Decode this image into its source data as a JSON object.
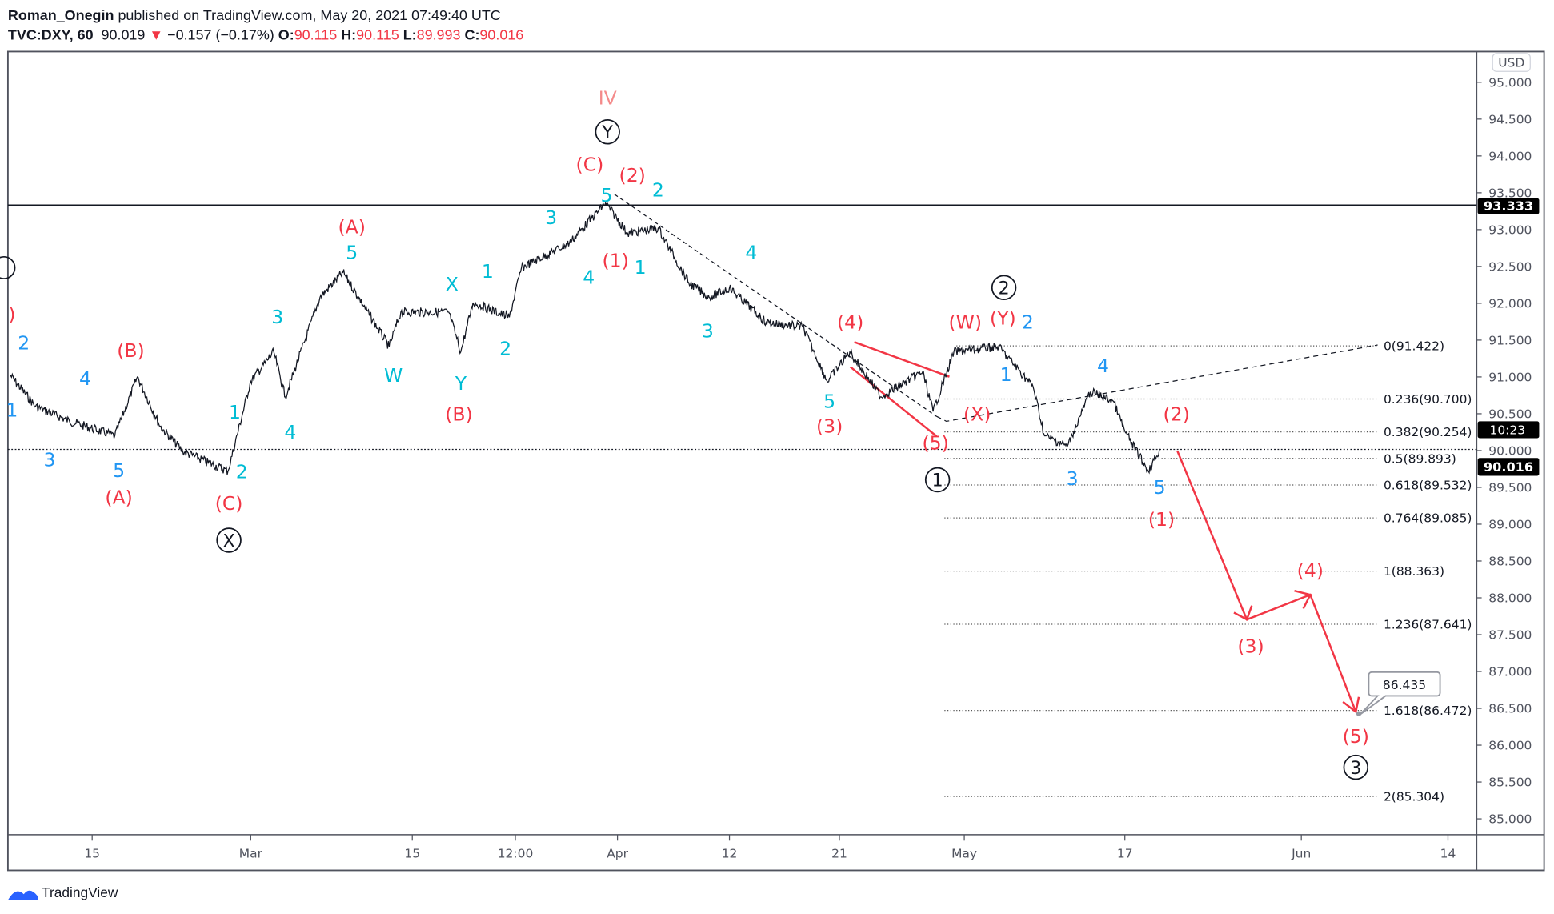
{
  "header": {
    "author": "Roman_Onegin",
    "published": "published on TradingView.com, May 20, 2021 07:49:40 UTC",
    "symbol": "TVC:DXY, 60",
    "last": "90.019",
    "change": "−0.157 (−0.17%)",
    "o_label": "O:",
    "o": "90.115",
    "h_label": "H:",
    "h": "90.115",
    "l_label": "L:",
    "l": "89.993",
    "c_label": "C:",
    "c": "90.016",
    "down_icon": "triangle-down-icon"
  },
  "colors": {
    "red": "#f23645",
    "cyan": "#00bcd4",
    "blue": "#2196f3",
    "pink": "#f48a8a",
    "price": "#131722"
  },
  "chart_data": {
    "type": "line",
    "title": "",
    "currency_label": "USD",
    "ylim": [
      84.8,
      95.4
    ],
    "y_ticks": [
      "95.000",
      "94.500",
      "94.000",
      "93.500",
      "93.000",
      "92.500",
      "92.000",
      "91.500",
      "91.000",
      "90.500",
      "90.000",
      "89.500",
      "89.000",
      "88.500",
      "88.000",
      "87.500",
      "87.000",
      "86.500",
      "86.000",
      "85.500",
      "85.000"
    ],
    "x_ticks": [
      "15",
      "Mar",
      "15",
      "12:00",
      "Apr",
      "12",
      "21",
      "May",
      "17",
      "Jun",
      "14"
    ],
    "last_price": "90.016",
    "countdown": "10:23",
    "horizontal_line": "93.333",
    "series": [
      {
        "points": [
          [
            "2021-02-08",
            91.03
          ],
          [
            "2021-02-10",
            90.6
          ],
          [
            "2021-02-13",
            90.4
          ],
          [
            "2021-02-17",
            90.2
          ],
          [
            "2021-02-19",
            91.0
          ],
          [
            "2021-02-21",
            90.33
          ],
          [
            "2021-02-23",
            89.99
          ],
          [
            "2021-02-27",
            89.72
          ],
          [
            "2021-03-01",
            90.94
          ],
          [
            "2021-03-03",
            91.34
          ],
          [
            "2021-03-04",
            90.73
          ],
          [
            "2021-03-07",
            92.08
          ],
          [
            "2021-03-09",
            92.42
          ],
          [
            "2021-03-13",
            91.41
          ],
          [
            "2021-03-14",
            91.88
          ],
          [
            "2021-03-18",
            91.88
          ],
          [
            "2021-03-19",
            91.34
          ],
          [
            "2021-03-20",
            92.01
          ],
          [
            "2021-03-23",
            91.81
          ],
          [
            "2021-03-24",
            92.48
          ],
          [
            "2021-03-28",
            92.82
          ],
          [
            "2021-03-31",
            93.36
          ],
          [
            "2021-04-02",
            92.95
          ],
          [
            "2021-04-05",
            93.02
          ],
          [
            "2021-04-08",
            92.28
          ],
          [
            "2021-04-10",
            92.08
          ],
          [
            "2021-04-12",
            92.21
          ],
          [
            "2021-04-15",
            91.74
          ],
          [
            "2021-04-18",
            91.68
          ],
          [
            "2021-04-20",
            90.94
          ],
          [
            "2021-04-22",
            91.34
          ],
          [
            "2021-04-25",
            90.73
          ],
          [
            "2021-04-29",
            91.07
          ],
          [
            "2021-04-30",
            90.53
          ],
          [
            "2021-05-02",
            91.34
          ],
          [
            "2021-05-06",
            91.41
          ],
          [
            "2021-05-09",
            90.87
          ],
          [
            "2021-05-10",
            90.2
          ],
          [
            "2021-05-12",
            90.06
          ],
          [
            "2021-05-14",
            90.8
          ],
          [
            "2021-05-16",
            90.67
          ],
          [
            "2021-05-17",
            90.26
          ],
          [
            "2021-05-19",
            89.72
          ],
          [
            "2021-05-20",
            90.02
          ]
        ]
      }
    ],
    "fib_levels": [
      {
        "label": "0(91.422)",
        "price": 91.422
      },
      {
        "label": "0.236(90.700)",
        "price": 90.7
      },
      {
        "label": "0.382(90.254)",
        "price": 90.254
      },
      {
        "label": "0.5(89.893)",
        "price": 89.893
      },
      {
        "label": "0.618(89.532)",
        "price": 89.532
      },
      {
        "label": "0.764(89.085)",
        "price": 89.085
      },
      {
        "label": "1(88.363)",
        "price": 88.363
      },
      {
        "label": "1.236(87.641)",
        "price": 87.641
      },
      {
        "label": "1.618(86.472)",
        "price": 86.472
      },
      {
        "label": "2(85.304)",
        "price": 85.304
      }
    ],
    "projection_callout": "86.435",
    "wave_labels": [
      {
        "text": ")",
        "color": "red"
      },
      {
        "text": "2",
        "color": "blue"
      },
      {
        "text": "1",
        "color": "blue"
      },
      {
        "text": "3",
        "color": "blue"
      },
      {
        "text": "4",
        "color": "blue"
      },
      {
        "text": "5",
        "color": "blue"
      },
      {
        "text": "(A)",
        "color": "red"
      },
      {
        "text": "(B)",
        "color": "red"
      },
      {
        "text": "1",
        "color": "cyan"
      },
      {
        "text": "2",
        "color": "cyan"
      },
      {
        "text": "(C)",
        "color": "red"
      },
      {
        "text": "3",
        "color": "cyan"
      },
      {
        "text": "4",
        "color": "cyan"
      },
      {
        "text": "(A)",
        "color": "red"
      },
      {
        "text": "5",
        "color": "cyan"
      },
      {
        "text": "W",
        "color": "cyan"
      },
      {
        "text": "X",
        "color": "cyan"
      },
      {
        "text": "1",
        "color": "cyan"
      },
      {
        "text": "Y",
        "color": "cyan"
      },
      {
        "text": "(B)",
        "color": "red"
      },
      {
        "text": "2",
        "color": "cyan"
      },
      {
        "text": "3",
        "color": "cyan"
      },
      {
        "text": "4",
        "color": "cyan"
      },
      {
        "text": "(1)",
        "color": "red"
      },
      {
        "text": "1",
        "color": "cyan"
      },
      {
        "text": "5",
        "color": "cyan"
      },
      {
        "text": "(C)",
        "color": "red"
      },
      {
        "text": "(2)",
        "color": "red"
      },
      {
        "text": "IV",
        "color": "pink"
      },
      {
        "text": "2",
        "color": "cyan"
      },
      {
        "text": "4",
        "color": "cyan"
      },
      {
        "text": "3",
        "color": "cyan"
      },
      {
        "text": "5",
        "color": "cyan"
      },
      {
        "text": "(3)",
        "color": "red"
      },
      {
        "text": "(4)",
        "color": "red"
      },
      {
        "text": "(5)",
        "color": "red"
      },
      {
        "text": "(X)",
        "color": "red"
      },
      {
        "text": "(W)",
        "color": "red"
      },
      {
        "text": "(Y)",
        "color": "red"
      },
      {
        "text": "2",
        "color": "blue"
      },
      {
        "text": "1",
        "color": "blue"
      },
      {
        "text": "4",
        "color": "blue"
      },
      {
        "text": "3",
        "color": "blue"
      },
      {
        "text": "5",
        "color": "blue"
      },
      {
        "text": "(1)",
        "color": "red"
      },
      {
        "text": "(2)",
        "color": "red"
      },
      {
        "text": "(3)",
        "color": "red"
      },
      {
        "text": "(4)",
        "color": "red"
      },
      {
        "text": "(5)",
        "color": "red"
      }
    ],
    "circled_labels": [
      "X",
      "Y",
      "1",
      "2",
      "3"
    ]
  },
  "footer": {
    "brand": "TradingView"
  }
}
